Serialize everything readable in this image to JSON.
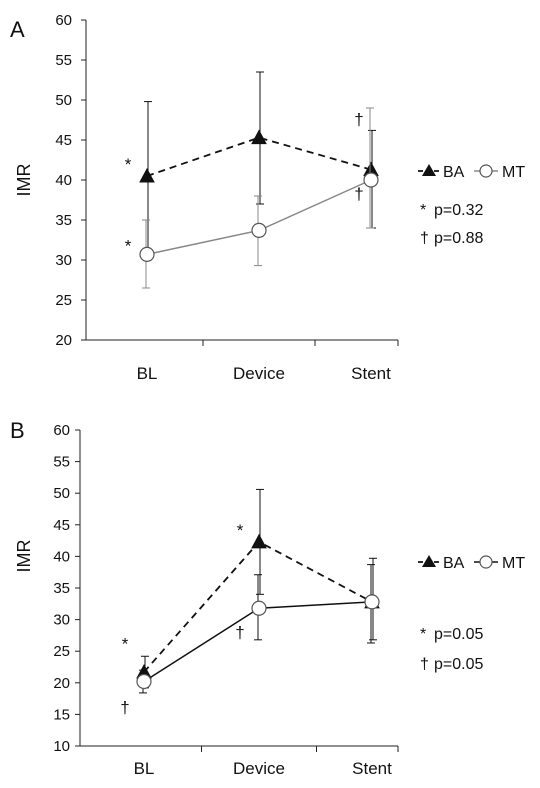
{
  "chart_data": [
    {
      "type": "line",
      "panel_label": "A",
      "ylabel": "IMR",
      "xlabel": "",
      "ylim": [
        20,
        60
      ],
      "yticks": [
        20,
        25,
        30,
        35,
        40,
        45,
        50,
        55,
        60
      ],
      "categories": [
        "BL",
        "Device",
        "Stent"
      ],
      "series": [
        {
          "name": "BA",
          "values": [
            40.5,
            45.3,
            41.3
          ],
          "err_high": [
            49.8,
            53.5,
            46.2
          ],
          "err_low": [
            31.2,
            37.0,
            34.0
          ],
          "marker": "filled-triangle",
          "line_style": "dashed",
          "color": "#111111"
        },
        {
          "name": "MT",
          "values": [
            30.7,
            33.7,
            40.0
          ],
          "err_high": [
            35.0,
            38.0,
            49.0
          ],
          "err_low": [
            26.5,
            29.3,
            34.0
          ],
          "marker": "open-circle",
          "line_style": "solid",
          "color": "#888888"
        }
      ],
      "point_marks": [
        {
          "symbol": "*",
          "category": "BL",
          "y": 42.0
        },
        {
          "symbol": "*",
          "category": "BL",
          "y": 31.8
        },
        {
          "symbol": "†",
          "category": "Stent",
          "y": 47.6
        },
        {
          "symbol": "†",
          "category": "Stent",
          "y": 38.3
        }
      ],
      "legend_position": "right",
      "notes": [
        {
          "symbol": "*",
          "text": "p=0.32"
        },
        {
          "symbol": "†",
          "text": "p=0.88"
        }
      ],
      "grid": false
    },
    {
      "type": "line",
      "panel_label": "B",
      "ylabel": "IMR",
      "xlabel": "",
      "ylim": [
        10,
        60
      ],
      "yticks": [
        10,
        15,
        20,
        25,
        30,
        35,
        40,
        45,
        50,
        55,
        60
      ],
      "categories": [
        "BL",
        "Device",
        "Stent"
      ],
      "series": [
        {
          "name": "BA",
          "values": [
            21.7,
            42.3,
            32.8
          ],
          "err_high": [
            24.2,
            50.6,
            39.7
          ],
          "err_low": [
            19.2,
            34.0,
            26.8
          ],
          "marker": "filled-triangle",
          "line_style": "dashed",
          "color": "#111111"
        },
        {
          "name": "MT",
          "values": [
            20.2,
            31.8,
            32.8
          ],
          "err_high": [
            22.0,
            37.1,
            38.7
          ],
          "err_low": [
            18.4,
            26.8,
            26.3
          ],
          "marker": "open-circle",
          "line_style": "solid",
          "color": "#111111"
        }
      ],
      "point_marks": [
        {
          "symbol": "*",
          "category": "BL",
          "y": 26.2
        },
        {
          "symbol": "†",
          "category": "BL",
          "y": 16.2
        },
        {
          "symbol": "*",
          "category": "Device",
          "y": 44.2
        },
        {
          "symbol": "†",
          "category": "Device",
          "y": 28.0
        }
      ],
      "legend_position": "right",
      "notes": [
        {
          "symbol": "*",
          "text": "p=0.05"
        },
        {
          "symbol": "†",
          "text": "p=0.05"
        }
      ],
      "grid": false
    }
  ]
}
